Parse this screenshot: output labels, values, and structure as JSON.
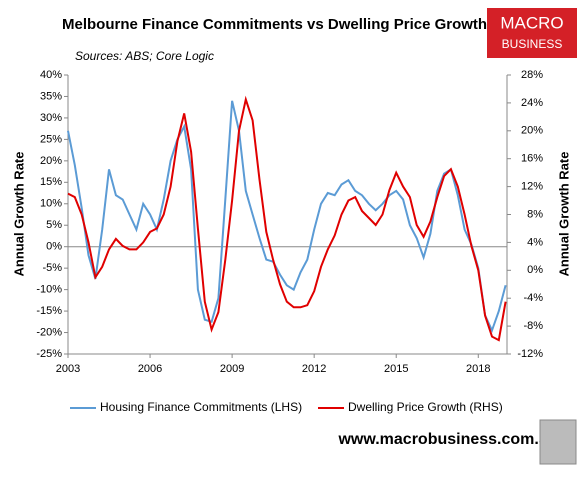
{
  "brand": {
    "line1": "MACRO",
    "line2": "BUSINESS"
  },
  "footer": "www.macrobusiness.com.au",
  "chart_data": {
    "type": "line",
    "title": "Melbourne Finance Commitments vs Dwelling Price Growth",
    "subtitle": "Sources: ABS; Core Logic",
    "y_label": "Annual Growth Rate",
    "y2_label": "Annual Growth Rate",
    "x": [
      2003,
      2003.25,
      2003.5,
      2003.75,
      2004,
      2004.25,
      2004.5,
      2004.75,
      2005,
      2005.25,
      2005.5,
      2005.75,
      2006,
      2006.25,
      2006.5,
      2006.75,
      2007,
      2007.25,
      2007.5,
      2007.75,
      2008,
      2008.25,
      2008.5,
      2008.75,
      2009,
      2009.25,
      2009.5,
      2009.75,
      2010,
      2010.25,
      2010.5,
      2010.75,
      2011,
      2011.25,
      2011.5,
      2011.75,
      2012,
      2012.25,
      2012.5,
      2012.75,
      2013,
      2013.25,
      2013.5,
      2013.75,
      2014,
      2014.25,
      2014.5,
      2014.75,
      2015,
      2015.25,
      2015.5,
      2015.75,
      2016,
      2016.25,
      2016.5,
      2016.75,
      2017,
      2017.25,
      2017.5,
      2017.75,
      2018,
      2018.25,
      2018.5,
      2018.75,
      2019
    ],
    "xlim": [
      2003,
      2019.05
    ],
    "xticks": [
      2003,
      2006,
      2009,
      2012,
      2015,
      2018
    ],
    "ylim": [
      -25,
      40
    ],
    "yticks": [
      {
        "value": -25,
        "label": "-25%"
      },
      {
        "value": -20,
        "label": "-20%"
      },
      {
        "value": -15,
        "label": "-15%"
      },
      {
        "value": -10,
        "label": "-10%"
      },
      {
        "value": -5,
        "label": "-5%"
      },
      {
        "value": 0,
        "label": "0%"
      },
      {
        "value": 5,
        "label": "5%"
      },
      {
        "value": 10,
        "label": "10%"
      },
      {
        "value": 15,
        "label": "15%"
      },
      {
        "value": 20,
        "label": "20%"
      },
      {
        "value": 25,
        "label": "25%"
      },
      {
        "value": 30,
        "label": "30%"
      },
      {
        "value": 35,
        "label": "35%"
      },
      {
        "value": 40,
        "label": "40%"
      }
    ],
    "y2lim": [
      -12,
      28
    ],
    "y2ticks": [
      {
        "value": -12,
        "label": "-12%"
      },
      {
        "value": -8,
        "label": "-8%"
      },
      {
        "value": -4,
        "label": "-4%"
      },
      {
        "value": 0,
        "label": "0%"
      },
      {
        "value": 4,
        "label": "4%"
      },
      {
        "value": 8,
        "label": "8%"
      },
      {
        "value": 12,
        "label": "12%"
      },
      {
        "value": 16,
        "label": "16%"
      },
      {
        "value": 20,
        "label": "20%"
      },
      {
        "value": 24,
        "label": "24%"
      },
      {
        "value": 28,
        "label": "28%"
      }
    ],
    "series": [
      {
        "name": "Housing Finance Commitments (LHS)",
        "color": "#5b9bd5",
        "axis": "y",
        "values": [
          27,
          19,
          9,
          -2,
          -7.5,
          4,
          18,
          12,
          11,
          7.5,
          4,
          10,
          7.5,
          4,
          11,
          20,
          25,
          28,
          18,
          -10,
          -17,
          -17.5,
          -12,
          11,
          34,
          27,
          13,
          7.5,
          2,
          -3,
          -3.5,
          -6.5,
          -9,
          -10,
          -6,
          -3,
          4,
          10,
          12.5,
          12,
          14.5,
          15.5,
          13,
          12,
          10,
          8.5,
          10,
          12,
          13,
          11,
          5,
          2,
          -2.5,
          3,
          13,
          17,
          18,
          12,
          4,
          0.5,
          -5,
          -16,
          -19.5,
          -15,
          -9
        ]
      },
      {
        "name": "Dwelling Price Growth (RHS)",
        "color": "#e00000",
        "axis": "y2",
        "values": [
          11,
          10.5,
          8,
          4,
          -1,
          0.5,
          3,
          4.5,
          3.5,
          3,
          3,
          4,
          5.5,
          6,
          8,
          12,
          18.5,
          22.5,
          17,
          6,
          -4.5,
          -8.5,
          -6,
          1.5,
          10,
          20,
          24.5,
          21.5,
          13,
          5.5,
          1.5,
          -2,
          -4.5,
          -5.3,
          -5.3,
          -5,
          -3,
          0.5,
          3,
          5,
          8,
          10,
          10.5,
          8.5,
          7.5,
          6.5,
          8,
          11.5,
          14,
          12,
          10.5,
          6.5,
          4.8,
          7,
          10.5,
          13.5,
          14.5,
          12,
          8,
          3.5,
          0,
          -6.5,
          -9.5,
          -10,
          -4.5
        ]
      }
    ]
  }
}
